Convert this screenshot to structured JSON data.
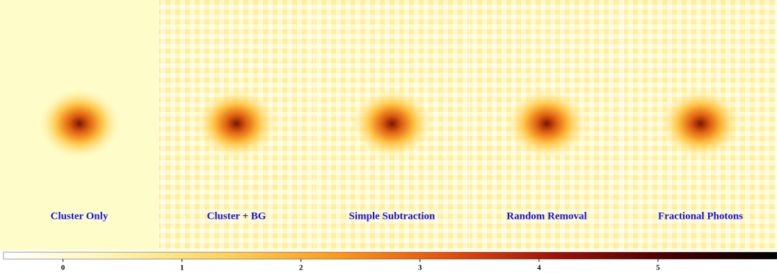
{
  "chart_data": {
    "type": "colorbar",
    "panels": [
      "Cluster Only",
      "Cluster + BG",
      "Simple Subtraction",
      "Random Removal",
      "Fractional Photons"
    ],
    "clim": [
      -0.5,
      6
    ],
    "ticks": [
      0,
      1,
      2,
      3,
      4,
      5
    ],
    "colormap": [
      "#ffffff",
      "#fff5b0",
      "#ffd257",
      "#ff9a1a",
      "#e8500a",
      "#a01005",
      "#4a0000",
      "#000000"
    ],
    "label_color": "#1414e6"
  }
}
